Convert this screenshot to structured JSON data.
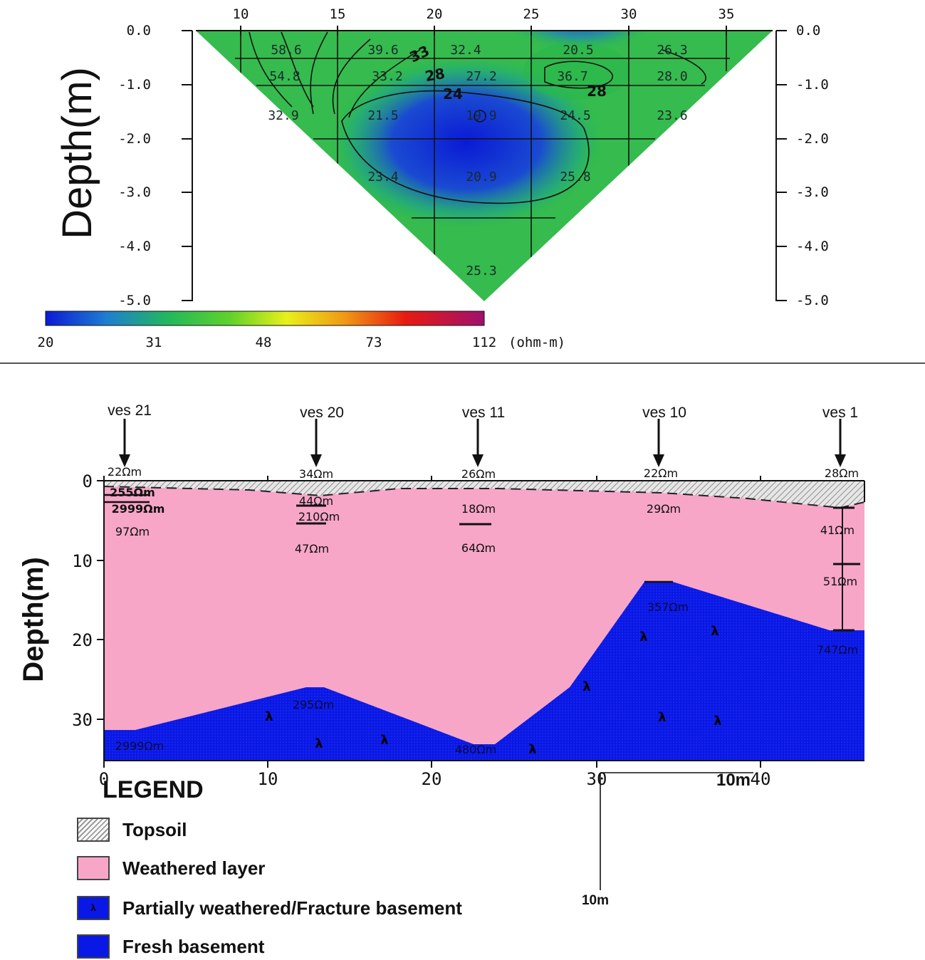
{
  "top_panel": {
    "y_axis_title": "Depth(m)",
    "x_ticks": [
      "10",
      "15",
      "20",
      "25",
      "30",
      "35"
    ],
    "y_ticks_left": [
      "0.0",
      "-1.0",
      "-2.0",
      "-3.0",
      "-4.0",
      "-5.0"
    ],
    "y_ticks_right": [
      "0.0",
      "-1.0",
      "-2.0",
      "-3.0",
      "-4.0",
      "-5.0"
    ],
    "resistivity_labels": [
      "58.6",
      "39.6",
      "32.4",
      "20.5",
      "26.3",
      "54.8",
      "33.2",
      "27.2",
      "36.7",
      "28.0",
      "32.9",
      "21.5",
      "19.9",
      "24.5",
      "23.6",
      "23.4",
      "20.9",
      "25.8",
      "25.3"
    ],
    "contour_labels": [
      "33",
      "28",
      "24",
      "28"
    ],
    "colorbar_ticks": [
      "20",
      "31",
      "48",
      "73",
      "112"
    ],
    "colorbar_unit": "(ohm-m)",
    "colorscale": [
      "#0a1ad6",
      "#1e7fd0",
      "#22b85a",
      "#5fd22a",
      "#e8f01a",
      "#f09a14",
      "#e81a10",
      "#a0106e"
    ]
  },
  "bottom_panel": {
    "y_axis_title": "Depth(m)",
    "ves_labels": [
      "ves 21",
      "ves 20",
      "ves 11",
      "ves 10",
      "ves 1"
    ],
    "x_ticks": [
      "0",
      "10",
      "20",
      "30",
      "40"
    ],
    "y_ticks": [
      "0",
      "10",
      "20",
      "30"
    ],
    "resistivity_labels": [
      "22Ωm",
      "255Ωm",
      "2999Ωm",
      "97Ωm",
      "34Ωm",
      "44Ωm",
      "210Ωm",
      "47Ωm",
      "26Ωm",
      "18Ωm",
      "64Ωm",
      "22Ωm",
      "29Ωm",
      "357Ωm",
      "28Ωm",
      "41Ωm",
      "51Ωm",
      "747Ωm",
      "295Ωm",
      "2999Ωm",
      "480Ωm"
    ],
    "scale_label_horizontal": "10m",
    "scale_label_vertical": "10m",
    "colors": {
      "topsoil": "#c8c8c8",
      "weathered": "#f7a6c8",
      "basement": "#0a18e6"
    }
  },
  "legend": {
    "title": "LEGEND",
    "items": [
      {
        "label": "Topsoil"
      },
      {
        "label": "Weathered layer"
      },
      {
        "label": "Partially weathered/Fracture basement",
        "symbol": "λ"
      },
      {
        "label": "Fresh basement"
      }
    ]
  }
}
